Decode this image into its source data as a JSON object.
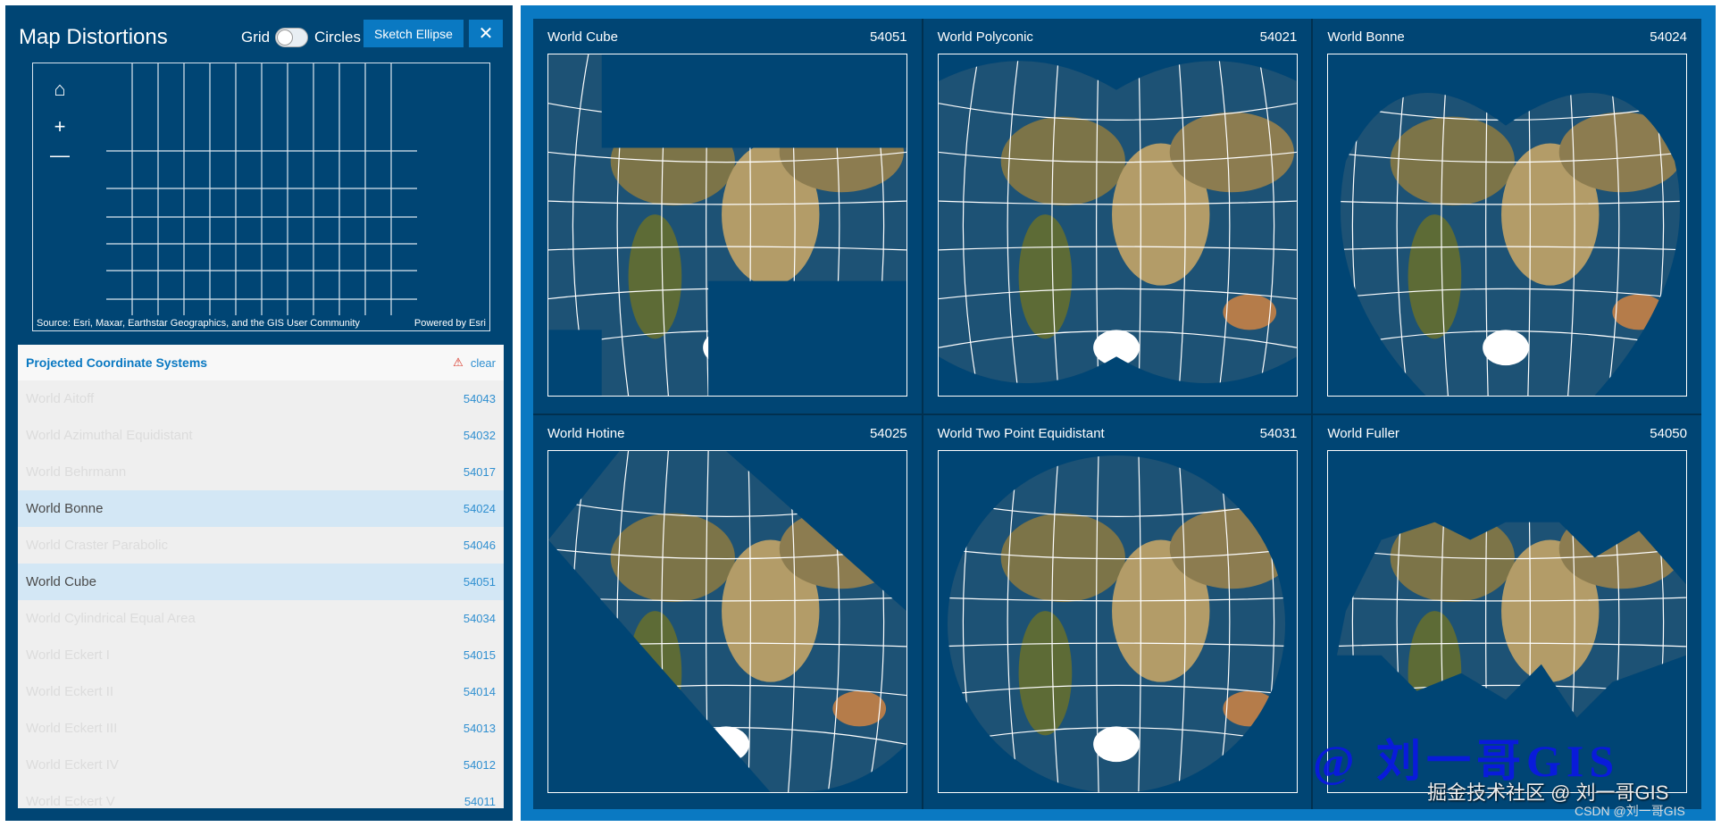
{
  "header": {
    "title": "Map Distortions",
    "grid_label": "Grid",
    "circles_label": "Circles",
    "toggle_on": false,
    "sketch_label": "Sketch Ellipse",
    "close_label": "✕"
  },
  "minimap": {
    "home_icon": "⌂",
    "zoom_in": "+",
    "zoom_out": "—",
    "source": "Source: Esri, Maxar, Earthstar Geographics, and the GIS User Community",
    "powered": "Powered by Esri"
  },
  "list": {
    "title": "Projected Coordinate Systems",
    "clear_label": "clear",
    "warning_icon": "⚠",
    "items": [
      {
        "name": "World Aitoff",
        "code": "54043",
        "selected": false
      },
      {
        "name": "World Azimuthal Equidistant",
        "code": "54032",
        "selected": false
      },
      {
        "name": "World Behrmann",
        "code": "54017",
        "selected": false
      },
      {
        "name": "World Bonne",
        "code": "54024",
        "selected": true
      },
      {
        "name": "World Craster Parabolic",
        "code": "54046",
        "selected": false
      },
      {
        "name": "World Cube",
        "code": "54051",
        "selected": true
      },
      {
        "name": "World Cylindrical Equal Area",
        "code": "54034",
        "selected": false
      },
      {
        "name": "World Eckert I",
        "code": "54015",
        "selected": false
      },
      {
        "name": "World Eckert II",
        "code": "54014",
        "selected": false
      },
      {
        "name": "World Eckert III",
        "code": "54013",
        "selected": false
      },
      {
        "name": "World Eckert IV",
        "code": "54012",
        "selected": false
      },
      {
        "name": "World Eckert V",
        "code": "54011",
        "selected": false
      }
    ]
  },
  "maps": [
    {
      "name": "World Cube",
      "code": "54051"
    },
    {
      "name": "World Polyconic",
      "code": "54021"
    },
    {
      "name": "World Bonne",
      "code": "54024"
    },
    {
      "name": "World Hotine",
      "code": "54025"
    },
    {
      "name": "World Two Point Equidistant",
      "code": "54031"
    },
    {
      "name": "World Fuller",
      "code": "54050"
    }
  ],
  "watermark": {
    "main": "@ 刘一哥GIS",
    "juejin": "掘金技术社区 @ 刘一哥GIS",
    "csdn": "CSDN @刘一哥GIS"
  },
  "colors": {
    "panel": "#004574",
    "accent": "#0a79c2",
    "selected_row": "#d3e7f5",
    "ocean": "#1d5275",
    "land": "#8c7c50"
  }
}
